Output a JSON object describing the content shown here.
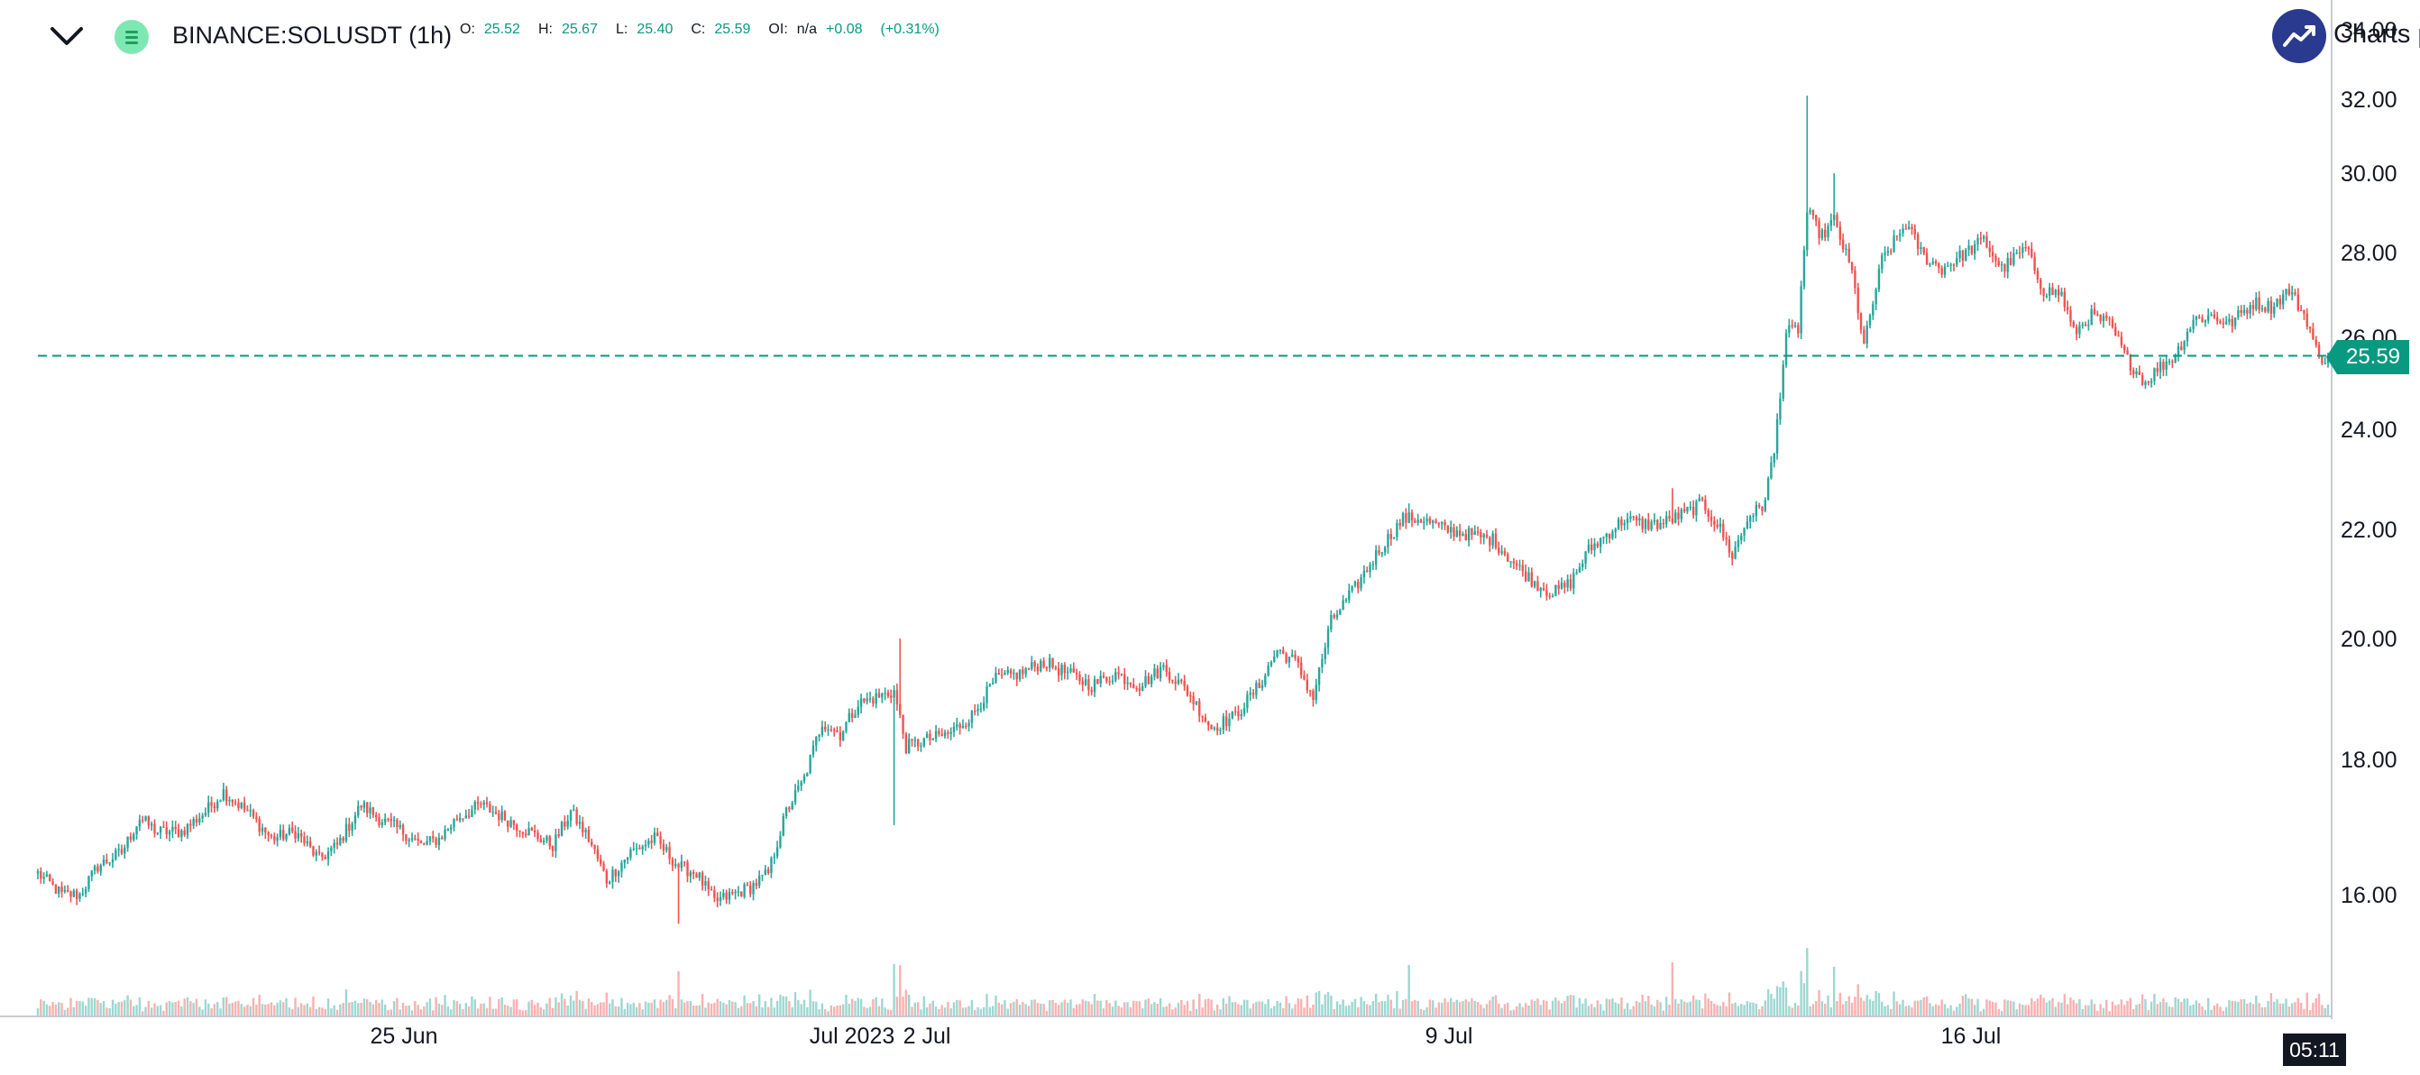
{
  "header": {
    "symbol": "BINANCE:SOLUSDT (1h)",
    "open_label": "O:",
    "open_value": "25.52",
    "high_label": "H:",
    "high_value": "25.67",
    "low_label": "L:",
    "low_value": "25.40",
    "close_label": "C:",
    "close_value": "25.59",
    "oi_label": "OI:",
    "oi_value": "n/a",
    "change": "+0.08",
    "change_pct": "(+0.31%)"
  },
  "branding": {
    "text": "Charts p"
  },
  "price_tag": "25.59",
  "time_tag": "05:11",
  "colors": {
    "up": "#26a69a",
    "down": "#ef5350",
    "last_price": "#089981"
  },
  "chart_data": {
    "type": "candlestick",
    "y_axis": {
      "ticks": [
        "16.00",
        "18.00",
        "20.00",
        "22.00",
        "24.00",
        "26.00",
        "28.00",
        "30.00",
        "32.00",
        "34.00"
      ],
      "log_scale": true,
      "ylim": [
        15.3,
        34.2
      ]
    },
    "x_axis": {
      "ticks": [
        "25 Jun",
        "Jul 2023",
        "2 Jul",
        "9 Jul",
        "16 Jul"
      ]
    },
    "last_price": 25.59,
    "grid": false,
    "price_anchors": [
      [
        0,
        16.3
      ],
      [
        8,
        16.0
      ],
      [
        14,
        16.0
      ],
      [
        20,
        16.4
      ],
      [
        28,
        16.6
      ],
      [
        34,
        17.1
      ],
      [
        40,
        16.9
      ],
      [
        48,
        16.9
      ],
      [
        56,
        17.2
      ],
      [
        62,
        17.5
      ],
      [
        70,
        17.2
      ],
      [
        78,
        16.8
      ],
      [
        86,
        16.9
      ],
      [
        94,
        16.5
      ],
      [
        100,
        16.7
      ],
      [
        108,
        17.3
      ],
      [
        114,
        17.1
      ],
      [
        122,
        16.9
      ],
      [
        128,
        16.7
      ],
      [
        134,
        16.8
      ],
      [
        140,
        17.1
      ],
      [
        148,
        17.3
      ],
      [
        156,
        17.1
      ],
      [
        164,
        16.9
      ],
      [
        172,
        16.7
      ],
      [
        178,
        17.2
      ],
      [
        184,
        16.8
      ],
      [
        190,
        16.2
      ],
      [
        198,
        16.6
      ],
      [
        206,
        16.8
      ],
      [
        214,
        16.4
      ],
      [
        220,
        16.3
      ],
      [
        226,
        15.9
      ],
      [
        232,
        16.0
      ],
      [
        238,
        16.1
      ],
      [
        244,
        16.3
      ],
      [
        250,
        17.2
      ],
      [
        256,
        17.7
      ],
      [
        262,
        18.6
      ],
      [
        268,
        18.4
      ],
      [
        274,
        18.9
      ],
      [
        280,
        19.0
      ],
      [
        286,
        19.1
      ],
      [
        290,
        18.2
      ],
      [
        296,
        18.3
      ],
      [
        304,
        18.4
      ],
      [
        312,
        18.7
      ],
      [
        320,
        19.3
      ],
      [
        328,
        19.4
      ],
      [
        336,
        19.6
      ],
      [
        344,
        19.4
      ],
      [
        352,
        19.2
      ],
      [
        360,
        19.4
      ],
      [
        368,
        19.2
      ],
      [
        376,
        19.5
      ],
      [
        384,
        19.1
      ],
      [
        392,
        18.5
      ],
      [
        400,
        18.7
      ],
      [
        408,
        19.2
      ],
      [
        414,
        19.8
      ],
      [
        420,
        19.6
      ],
      [
        426,
        19.0
      ],
      [
        432,
        20.3
      ],
      [
        440,
        20.9
      ],
      [
        448,
        21.6
      ],
      [
        456,
        22.2
      ],
      [
        462,
        22.2
      ],
      [
        470,
        22.0
      ],
      [
        478,
        21.9
      ],
      [
        486,
        21.8
      ],
      [
        494,
        21.3
      ],
      [
        500,
        21.0
      ],
      [
        506,
        20.8
      ],
      [
        512,
        21.0
      ],
      [
        518,
        21.6
      ],
      [
        524,
        21.9
      ],
      [
        530,
        22.2
      ],
      [
        536,
        22.1
      ],
      [
        542,
        22.1
      ],
      [
        550,
        22.3
      ],
      [
        556,
        22.5
      ],
      [
        562,
        22.0
      ],
      [
        566,
        21.5
      ],
      [
        572,
        22.3
      ],
      [
        576,
        22.4
      ],
      [
        580,
        23.5
      ],
      [
        584,
        26.1
      ],
      [
        588,
        26.2
      ],
      [
        591,
        29.0
      ],
      [
        596,
        28.4
      ],
      [
        600,
        28.8
      ],
      [
        606,
        27.5
      ],
      [
        610,
        25.8
      ],
      [
        616,
        27.8
      ],
      [
        624,
        28.7
      ],
      [
        630,
        27.9
      ],
      [
        636,
        27.6
      ],
      [
        644,
        28.0
      ],
      [
        650,
        28.3
      ],
      [
        656,
        27.6
      ],
      [
        664,
        28.1
      ],
      [
        670,
        27.1
      ],
      [
        676,
        27.0
      ],
      [
        680,
        26.1
      ],
      [
        686,
        26.5
      ],
      [
        692,
        26.3
      ],
      [
        698,
        25.5
      ],
      [
        704,
        25.0
      ],
      [
        708,
        25.3
      ],
      [
        714,
        25.6
      ],
      [
        720,
        26.4
      ],
      [
        726,
        26.5
      ],
      [
        732,
        26.3
      ],
      [
        740,
        26.8
      ],
      [
        746,
        26.7
      ],
      [
        752,
        27.1
      ],
      [
        758,
        26.4
      ],
      [
        762,
        25.5
      ],
      [
        765,
        25.59
      ]
    ],
    "spikes": [
      {
        "bar": 591,
        "high": 32.1
      },
      {
        "bar": 288,
        "high": 20.0
      },
      {
        "bar": 286,
        "low": 17.0
      },
      {
        "bar": 600,
        "high": 30.0
      },
      {
        "bar": 458,
        "high": 22.5
      },
      {
        "bar": 546,
        "high": 22.8
      },
      {
        "bar": 214,
        "low": 15.6
      }
    ],
    "bar_count": 766
  }
}
